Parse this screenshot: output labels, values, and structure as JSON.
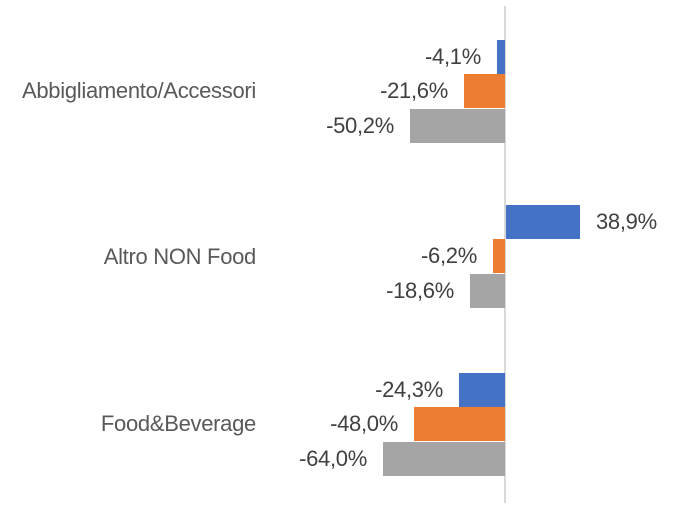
{
  "chart": {
    "background_color": "#FFFFFF",
    "axis_line_color": "#D9D9D9",
    "category_label_color": "#595959",
    "data_label_color": "#404040"
  },
  "chart_data": {
    "type": "bar",
    "orientation": "horizontal",
    "title": "",
    "xlabel": "",
    "ylabel": "",
    "grid": false,
    "legend": false,
    "value_format": "percent, comma decimal separator",
    "xlim": [
      -70,
      100
    ],
    "categories": [
      "Abbigliamento/Accessori",
      "Altro NON Food",
      "Food&Beverage"
    ],
    "series": [
      {
        "name": "series-blue",
        "color": "#4472C4",
        "values": [
          -4.1,
          38.9,
          -24.3
        ],
        "labels": [
          "-4,1%",
          "38,9%",
          "-24,3%"
        ]
      },
      {
        "name": "series-orange",
        "color": "#ED7D31",
        "values": [
          -21.6,
          -6.2,
          -48.0
        ],
        "labels": [
          "-21,6%",
          "-6,2%",
          "-48,0%"
        ]
      },
      {
        "name": "series-gray",
        "color": "#A5A5A5",
        "values": [
          -50.2,
          -18.6,
          -64.0
        ],
        "labels": [
          "-50,2%",
          "-18,6%",
          "-64,0%"
        ]
      }
    ]
  }
}
